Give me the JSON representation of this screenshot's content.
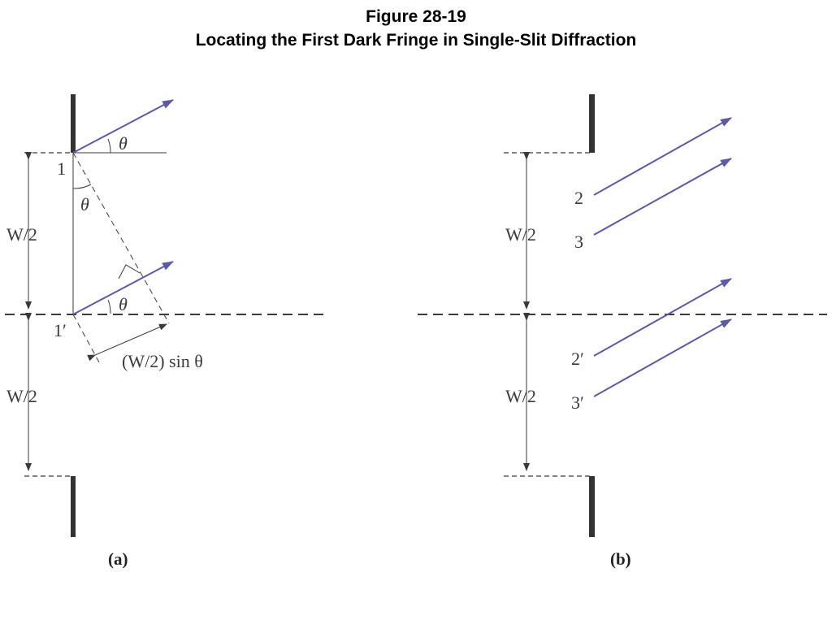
{
  "figure": {
    "number": "Figure 28-19",
    "title": "Locating the First Dark Fringe in Single-Slit Diffraction"
  },
  "panel_a": {
    "label": "(a)",
    "angle_top": "θ",
    "angle_mid": "θ",
    "angle_bottom": "θ",
    "point_1": "1",
    "point_1_prime": "1′",
    "half_width_upper": "W/2",
    "half_width_lower": "W/2",
    "path_difference": "(W/2) sin θ"
  },
  "panel_b": {
    "label": "(b)",
    "ray_2": "2",
    "ray_3": "3",
    "ray_2_prime": "2′",
    "ray_3_prime": "3′",
    "half_width_upper": "W/2",
    "half_width_lower": "W/2"
  },
  "colors": {
    "ray": "#5a5aa8",
    "line": "#3a3a3a",
    "barrier": "#333333"
  }
}
